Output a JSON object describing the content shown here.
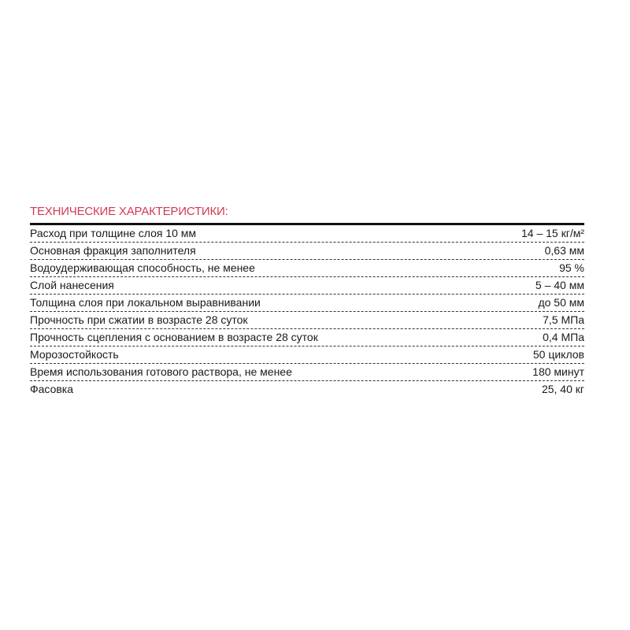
{
  "title": "ТЕХНИЧЕСКИЕ ХАРАКТЕРИСТИКИ:",
  "title_color": "#d23a52",
  "rows": [
    {
      "label": "Расход при толщине слоя 10 мм",
      "value": "14 – 15 кг/м²"
    },
    {
      "label": "Основная фракция заполнителя",
      "value": "0,63 мм"
    },
    {
      "label": "Водоудерживающая способность, не менее",
      "value": "95 %"
    },
    {
      "label": "Слой нанесения",
      "value": "5 – 40 мм"
    },
    {
      "label": "Толщина слоя при локальном выравнивании",
      "value": "до 50 мм"
    },
    {
      "label": "Прочность при сжатии в возрасте 28 суток",
      "value": "7,5 МПа"
    },
    {
      "label": "Прочность сцепления с основанием в возрасте 28 суток",
      "value": "0,4 МПа"
    },
    {
      "label": "Морозостойкость",
      "value": "50 циклов"
    },
    {
      "label": "Время использования готового раствора, не менее",
      "value": "180 минут"
    },
    {
      "label": "Фасовка",
      "value": "25, 40 кг"
    }
  ]
}
